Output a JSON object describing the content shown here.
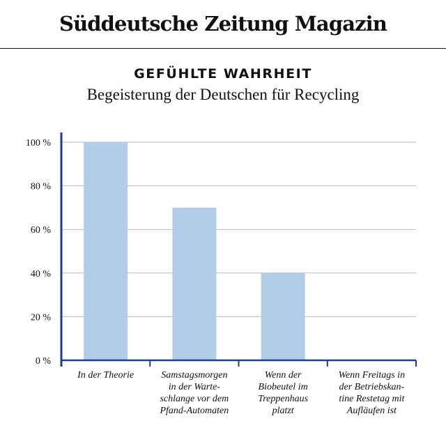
{
  "masthead": {
    "logo_text": "Süddeutsche Zeitung Magazin"
  },
  "colors": {
    "bar": "#b3cde8",
    "axis": "#1f3f8c",
    "grid": "#b9b9b9"
  },
  "chart_data": {
    "type": "bar",
    "title": "GEFÜHLTE WAHRHEIT",
    "subtitle": "Begeisterung der Deutschen für Recycling",
    "xlabel": "",
    "ylabel": "",
    "ylim": [
      0,
      100
    ],
    "yticks": [
      0,
      20,
      40,
      60,
      80,
      100
    ],
    "ytick_labels": [
      "0 %",
      "20 %",
      "40 %",
      "60 %",
      "80 %",
      "100 %"
    ],
    "grid": true,
    "categories": [
      [
        "In der Theorie"
      ],
      [
        "Samstagsmorgen",
        "in der Warte-",
        "schlange vor dem",
        "Pfand-Automaten"
      ],
      [
        "Wenn der",
        "Biobeutel im",
        "Treppenhaus",
        "platzt"
      ],
      [
        "Wenn Freitags in",
        "der Betriebskan-",
        "tine Restetag mit",
        "Aufläufen ist"
      ]
    ],
    "values": [
      100,
      70,
      40,
      0
    ]
  }
}
